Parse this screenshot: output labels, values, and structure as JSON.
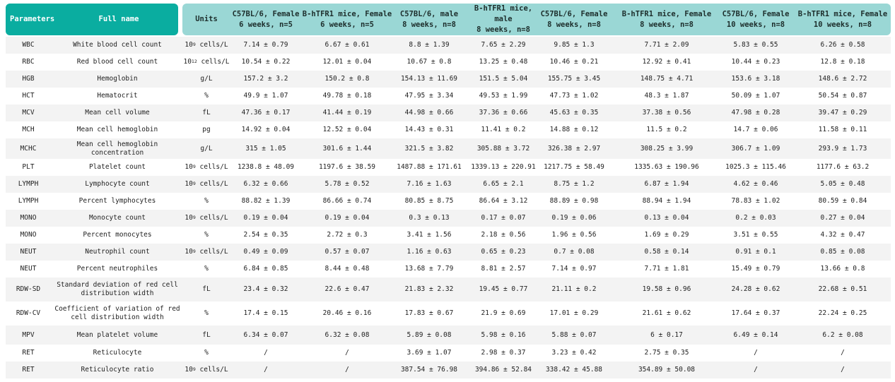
{
  "table": {
    "header": {
      "parameters": "Parameters",
      "full_name": "Full name",
      "units": "Units",
      "columns": [
        [
          "C57BL/6, Female",
          "6 weeks, n=5"
        ],
        [
          "B-hTFR1 mice, Female",
          "6 weeks, n=5"
        ],
        [
          "C57BL/6, male",
          "8 weeks, n=8"
        ],
        [
          "B-hTFR1 mice,",
          "male",
          "8 weeks, n=8"
        ],
        [
          "C57BL/6, Female",
          "8 weeks, n=8"
        ],
        [
          "B-hTFR1 mice, Female",
          "8 weeks, n=8"
        ],
        [
          "C57BL/6, Female",
          "10 weeks, n=8"
        ],
        [
          "B-hTFR1 mice, Female",
          "10 weeks, n=8"
        ]
      ]
    },
    "rows": [
      {
        "param": "WBC",
        "name": "White blood cell count",
        "unit_base": "10",
        "unit_exp": "9",
        "unit_rest": " cells/L",
        "values": [
          "7.14 ± 0.79",
          "6.67 ± 0.61",
          "8.8 ± 1.39",
          "7.65 ± 2.29",
          "9.85 ± 1.3",
          "7.71 ± 2.09",
          "5.83 ± 0.55",
          "6.26 ± 0.58"
        ]
      },
      {
        "param": "RBC",
        "name": "Red blood cell count",
        "unit_base": "10",
        "unit_exp": "12",
        "unit_rest": " cells/L",
        "values": [
          "10.54 ± 0.22",
          "12.01 ± 0.04",
          "10.67 ± 0.8",
          "13.25 ± 0.48",
          "10.46 ± 0.21",
          "12.92 ± 0.41",
          "10.44 ± 0.23",
          "12.8 ± 0.18"
        ]
      },
      {
        "param": "HGB",
        "name": "Hemoglobin",
        "unit_base": "g/L",
        "unit_exp": "",
        "unit_rest": "",
        "values": [
          "157.2 ± 3.2",
          "150.2 ± 0.8",
          "154.13 ± 11.69",
          "151.5 ± 5.04",
          "155.75 ± 3.45",
          "148.75 ± 4.71",
          "153.6 ± 3.18",
          "148.6 ± 2.72"
        ]
      },
      {
        "param": "HCT",
        "name": "Hematocrit",
        "unit_base": "%",
        "unit_exp": "",
        "unit_rest": "",
        "values": [
          "49.9 ± 1.07",
          "49.78 ± 0.18",
          "47.95 ± 3.34",
          "49.53 ± 1.99",
          "47.73 ± 1.02",
          "48.3 ± 1.87",
          "50.09 ± 1.07",
          "50.54 ± 0.87"
        ]
      },
      {
        "param": "MCV",
        "name": "Mean cell volume",
        "unit_base": "fL",
        "unit_exp": "",
        "unit_rest": "",
        "values": [
          "47.36 ± 0.17",
          "41.44 ± 0.19",
          "44.98 ± 0.66",
          "37.36 ± 0.66",
          "45.63 ± 0.35",
          "37.38 ± 0.56",
          "47.98 ± 0.28",
          "39.47 ± 0.29"
        ]
      },
      {
        "param": "MCH",
        "name": "Mean cell hemoglobin",
        "unit_base": "pg",
        "unit_exp": "",
        "unit_rest": "",
        "values": [
          "14.92 ± 0.04",
          "12.52 ± 0.04",
          "14.43 ± 0.31",
          "11.41 ± 0.2",
          "14.88 ± 0.12",
          "11.5 ± 0.2",
          "14.7 ± 0.06",
          "11.58 ± 0.11"
        ]
      },
      {
        "param": "MCHC",
        "name": "Mean cell hemoglobin concentration",
        "unit_base": "g/L",
        "unit_exp": "",
        "unit_rest": "",
        "values": [
          "315 ± 1.05",
          "301.6 ± 1.44",
          "321.5 ± 3.82",
          "305.88 ± 3.72",
          "326.38 ± 2.97",
          "308.25 ± 3.99",
          "306.7 ± 1.09",
          "293.9 ± 1.73"
        ]
      },
      {
        "param": "PLT",
        "name": "Platelet count",
        "unit_base": "10",
        "unit_exp": "9",
        "unit_rest": " cells/L",
        "values": [
          "1238.8 ± 48.09",
          "1197.6 ± 38.59",
          "1487.88 ± 171.61",
          "1339.13 ± 220.91",
          "1217.75 ± 58.49",
          "1335.63 ± 190.96",
          "1025.3 ± 115.46",
          "1177.6 ± 63.2"
        ]
      },
      {
        "param": "LYMPH",
        "name": "Lymphocyte count",
        "unit_base": "10",
        "unit_exp": "9",
        "unit_rest": " cells/L",
        "values": [
          "6.32 ± 0.66",
          "5.78 ± 0.52",
          "7.16 ± 1.63",
          "6.65 ± 2.1",
          "8.75 ± 1.2",
          "6.87 ± 1.94",
          "4.62 ± 0.46",
          "5.05 ± 0.48"
        ]
      },
      {
        "param": "LYMPH",
        "name": "Percent lymphocytes",
        "unit_base": "%",
        "unit_exp": "",
        "unit_rest": "",
        "values": [
          "88.82 ± 1.39",
          "86.66 ± 0.74",
          "80.85 ± 8.75",
          "86.64 ± 3.12",
          "88.89 ± 0.98",
          "88.94 ± 1.94",
          "78.83 ± 1.02",
          "80.59 ± 0.84"
        ]
      },
      {
        "param": "MONO",
        "name": "Monocyte count",
        "unit_base": "10",
        "unit_exp": "9",
        "unit_rest": " cells/L",
        "values": [
          "0.19 ± 0.04",
          "0.19 ± 0.04",
          "0.3 ± 0.13",
          "0.17 ± 0.07",
          "0.19 ± 0.06",
          "0.13 ± 0.04",
          "0.2 ± 0.03",
          "0.27 ± 0.04"
        ]
      },
      {
        "param": "MONO",
        "name": "Percent monocytes",
        "unit_base": "%",
        "unit_exp": "",
        "unit_rest": "",
        "values": [
          "2.54 ± 0.35",
          "2.72 ± 0.3",
          "3.41 ± 1.56",
          "2.18 ± 0.56",
          "1.96 ± 0.56",
          "1.69 ± 0.29",
          "3.51 ± 0.55",
          "4.32 ± 0.47"
        ]
      },
      {
        "param": "NEUT",
        "name": "Neutrophil count",
        "unit_base": "10",
        "unit_exp": "9",
        "unit_rest": " cells/L",
        "values": [
          "0.49 ± 0.09",
          "0.57 ± 0.07",
          "1.16 ± 0.63",
          "0.65 ± 0.23",
          "0.7 ± 0.08",
          "0.58 ± 0.14",
          "0.91 ± 0.1",
          "0.85 ± 0.08"
        ]
      },
      {
        "param": "NEUT",
        "name": "Percent neutrophiles",
        "unit_base": "%",
        "unit_exp": "",
        "unit_rest": "",
        "values": [
          "6.84 ± 0.85",
          "8.44 ± 0.48",
          "13.68 ± 7.79",
          "8.81 ± 2.57",
          "7.14 ± 0.97",
          "7.71 ± 1.81",
          "15.49 ± 0.79",
          "13.66 ± 0.8"
        ]
      },
      {
        "param": "RDW-SD",
        "name": "Standard deviation of red cell distribution width",
        "unit_base": "fL",
        "unit_exp": "",
        "unit_rest": "",
        "values": [
          "23.4 ± 0.32",
          "22.6 ± 0.47",
          "21.83 ± 2.32",
          "19.45 ± 0.77",
          "21.11 ± 0.2",
          "19.58 ± 0.96",
          "24.28 ± 0.62",
          "22.68 ± 0.51"
        ]
      },
      {
        "param": "RDW-CV",
        "name": "Coefficient of variation of red cell distribution width",
        "unit_base": "%",
        "unit_exp": "",
        "unit_rest": "",
        "values": [
          "17.4 ± 0.15",
          "20.46 ± 0.16",
          "17.83 ± 0.67",
          "21.9 ± 0.69",
          "17.01 ± 0.29",
          "21.61 ± 0.62",
          "17.64 ± 0.37",
          "22.24 ± 0.25"
        ]
      },
      {
        "param": "MPV",
        "name": "Mean platelet volume",
        "unit_base": "fL",
        "unit_exp": "",
        "unit_rest": "",
        "values": [
          "6.34 ± 0.07",
          "6.32 ± 0.08",
          "5.89 ± 0.08",
          "5.98 ± 0.16",
          "5.88 ± 0.07",
          "6 ± 0.17",
          "6.49 ± 0.14",
          "6.2 ± 0.08"
        ]
      },
      {
        "param": "RET",
        "name": "Reticulocyte",
        "unit_base": "%",
        "unit_exp": "",
        "unit_rest": "",
        "values": [
          "/",
          "/",
          "3.69 ± 1.07",
          "2.98 ± 0.37",
          "3.23 ± 0.42",
          "2.75 ± 0.35",
          "/",
          "/"
        ]
      },
      {
        "param": "RET",
        "name": "Reticulocyte ratio",
        "unit_base": "10",
        "unit_exp": "9",
        "unit_rest": " cells/L",
        "values": [
          "/",
          "/",
          "387.54 ± 76.98",
          "394.86 ± 52.84",
          "338.42 ± 45.88",
          "354.89 ± 50.08",
          "/",
          "/"
        ]
      }
    ]
  }
}
